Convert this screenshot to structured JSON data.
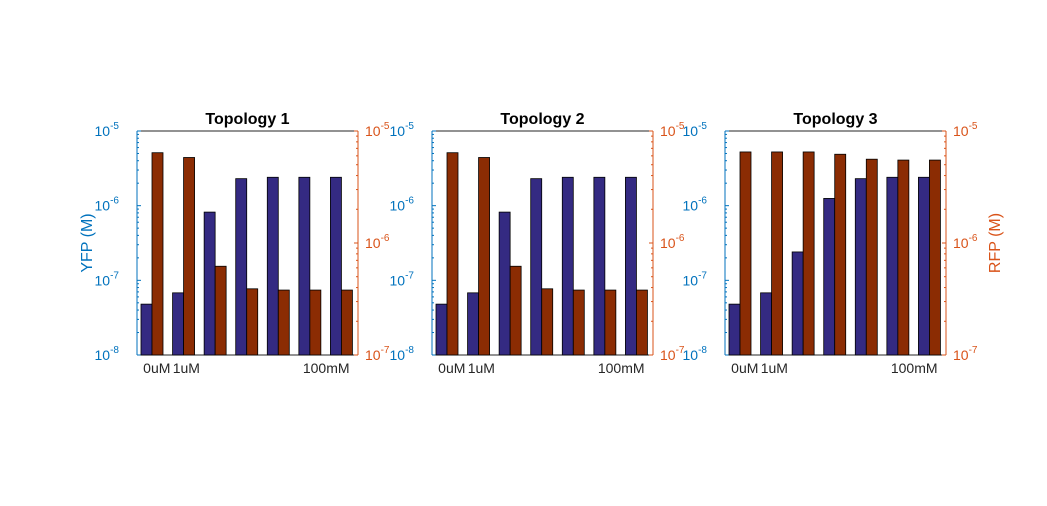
{
  "chart_data": [
    {
      "type": "bar",
      "title": "Topology 1",
      "x_tick_labels": [
        "0uM",
        "1uM",
        "100mM"
      ],
      "left_axis": {
        "label": "YFP (M)",
        "scale": "log",
        "ylim": [
          1e-08,
          1e-05
        ],
        "ticks": [
          "10",
          "10",
          "10",
          "10"
        ],
        "exponents": [
          "-8",
          "-7",
          "-6",
          "-5"
        ],
        "color": "#0072BD"
      },
      "right_axis": {
        "label": "RFP (M)",
        "scale": "log",
        "ylim": [
          1e-07,
          1e-05
        ],
        "ticks": [
          "10",
          "10",
          "10"
        ],
        "exponents": [
          "-7",
          "-6",
          "-5"
        ],
        "color": "#D95319"
      },
      "series": [
        {
          "axis": "left",
          "color": "#342A82",
          "values": [
            4.8e-08,
            6.8e-08,
            8.2e-07,
            2.3e-06,
            2.4e-06,
            2.4e-06,
            2.4e-06
          ]
        },
        {
          "axis": "right",
          "color": "#8B2C03",
          "values": [
            6.4e-06,
            5.8e-06,
            6.2e-07,
            3.9e-07,
            3.8e-07,
            3.8e-07,
            3.8e-07
          ]
        }
      ]
    },
    {
      "type": "bar",
      "title": "Topology 2",
      "x_tick_labels": [
        "0uM",
        "1uM",
        "100mM"
      ],
      "left_axis": {
        "label": "",
        "scale": "log",
        "ylim": [
          1e-08,
          1e-05
        ],
        "ticks": [
          "10",
          "10",
          "10",
          "10"
        ],
        "exponents": [
          "-8",
          "-7",
          "-6",
          "-5"
        ],
        "color": "#0072BD"
      },
      "right_axis": {
        "label": "",
        "scale": "log",
        "ylim": [
          1e-07,
          1e-05
        ],
        "ticks": [
          "10",
          "10",
          "10"
        ],
        "exponents": [
          "-7",
          "-6",
          "-5"
        ],
        "color": "#D95319"
      },
      "series": [
        {
          "axis": "left",
          "color": "#342A82",
          "values": [
            4.8e-08,
            6.8e-08,
            8.2e-07,
            2.3e-06,
            2.4e-06,
            2.4e-06,
            2.4e-06
          ]
        },
        {
          "axis": "right",
          "color": "#8B2C03",
          "values": [
            6.4e-06,
            5.8e-06,
            6.2e-07,
            3.9e-07,
            3.8e-07,
            3.8e-07,
            3.8e-07
          ]
        }
      ]
    },
    {
      "type": "bar",
      "title": "Topology 3",
      "x_tick_labels": [
        "0uM",
        "1uM",
        "100mM"
      ],
      "left_axis": {
        "label": "",
        "scale": "log",
        "ylim": [
          1e-08,
          1e-05
        ],
        "ticks": [
          "10",
          "10",
          "10",
          "10"
        ],
        "exponents": [
          "-8",
          "-7",
          "-6",
          "-5"
        ],
        "color": "#0072BD"
      },
      "right_axis": {
        "label": "RFP (M)",
        "scale": "log",
        "ylim": [
          1e-07,
          1e-05
        ],
        "ticks": [
          "10",
          "10",
          "10"
        ],
        "exponents": [
          "-7",
          "-6",
          "-5"
        ],
        "color": "#D95319"
      },
      "series": [
        {
          "axis": "left",
          "color": "#342A82",
          "values": [
            4.8e-08,
            6.8e-08,
            2.4e-07,
            1.25e-06,
            2.3e-06,
            2.4e-06,
            2.4e-06
          ]
        },
        {
          "axis": "right",
          "color": "#8B2C03",
          "values": [
            6.5e-06,
            6.5e-06,
            6.5e-06,
            6.2e-06,
            5.6e-06,
            5.5e-06,
            5.5e-06
          ]
        }
      ]
    }
  ]
}
